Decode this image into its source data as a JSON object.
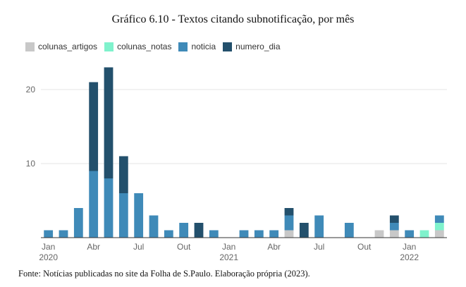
{
  "chart_data": {
    "type": "bar",
    "stacked": true,
    "title": "Gráfico 6.10 - Textos citando subnotificação, por mês",
    "footer": "Fonte: Notícias publicadas no site da Folha de S.Paulo. Elaboração própria (2023).",
    "ylim": [
      0,
      25
    ],
    "yticks": [
      10,
      20
    ],
    "x_tick_labels": [
      {
        "index": 0,
        "line1": "Jan",
        "line2": "2020"
      },
      {
        "index": 3,
        "line1": "Abr",
        "line2": ""
      },
      {
        "index": 6,
        "line1": "Jul",
        "line2": ""
      },
      {
        "index": 9,
        "line1": "Out",
        "line2": ""
      },
      {
        "index": 12,
        "line1": "Jan",
        "line2": "2021"
      },
      {
        "index": 15,
        "line1": "Abr",
        "line2": ""
      },
      {
        "index": 18,
        "line1": "Jul",
        "line2": ""
      },
      {
        "index": 21,
        "line1": "Out",
        "line2": ""
      },
      {
        "index": 24,
        "line1": "Jan",
        "line2": "2022"
      }
    ],
    "categories": [
      "2020-01",
      "2020-02",
      "2020-03",
      "2020-04",
      "2020-05",
      "2020-06",
      "2020-07",
      "2020-08",
      "2020-09",
      "2020-10",
      "2020-11",
      "2020-12",
      "2021-01",
      "2021-02",
      "2021-03",
      "2021-04",
      "2021-05",
      "2021-06",
      "2021-07",
      "2021-08",
      "2021-09",
      "2021-10",
      "2021-11",
      "2021-12",
      "2022-01",
      "2022-02",
      "2022-03"
    ],
    "series": [
      {
        "name": "colunas_artigos",
        "color": "#c8c8c8",
        "values": [
          0,
          0,
          0,
          0,
          0,
          0,
          0,
          0,
          0,
          0,
          0,
          0,
          0,
          0,
          0,
          0,
          1,
          0,
          0,
          0,
          0,
          0,
          1,
          1,
          0,
          0,
          1
        ]
      },
      {
        "name": "colunas_notas",
        "color": "#7ff2cc",
        "values": [
          0,
          0,
          0,
          0,
          0,
          0,
          0,
          0,
          0,
          0,
          0,
          0,
          0,
          0,
          0,
          0,
          0,
          0,
          0,
          0,
          0,
          0,
          0,
          0,
          0,
          1,
          1
        ]
      },
      {
        "name": "noticia",
        "color": "#3f8ab8",
        "values": [
          1,
          1,
          4,
          9,
          8,
          6,
          6,
          3,
          1,
          2,
          0,
          1,
          0,
          1,
          1,
          1,
          2,
          0,
          3,
          0,
          2,
          0,
          0,
          1,
          1,
          0,
          1
        ]
      },
      {
        "name": "numero_dia",
        "color": "#23506c",
        "values": [
          0,
          0,
          0,
          12,
          15,
          5,
          0,
          0,
          0,
          0,
          2,
          0,
          0,
          0,
          0,
          0,
          1,
          2,
          0,
          0,
          0,
          0,
          0,
          1,
          0,
          0,
          0
        ]
      }
    ]
  }
}
